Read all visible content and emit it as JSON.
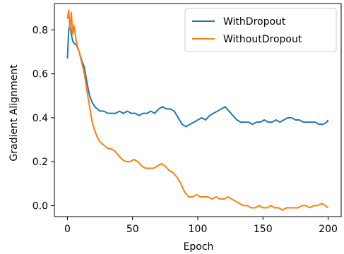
{
  "chart_data": {
    "type": "line",
    "title": "",
    "xlabel": "Epoch",
    "ylabel": "Gradient Alignment",
    "xlim": [
      -10,
      210
    ],
    "ylim": [
      -0.05,
      0.92
    ],
    "xticks": [
      0,
      50,
      100,
      150,
      200
    ],
    "yticks": [
      0.0,
      0.2,
      0.4,
      0.6,
      0.8
    ],
    "ytick_labels": [
      "0.0",
      "0.2",
      "0.4",
      "0.6",
      "0.8"
    ],
    "grid": false,
    "legend_position": "top-right",
    "series": [
      {
        "name": "WithDropout",
        "color": "#1f77b4",
        "x": [
          0,
          1,
          2,
          3,
          4,
          5,
          7,
          9,
          11,
          13,
          15,
          17,
          19,
          21,
          23,
          25,
          28,
          31,
          34,
          37,
          40,
          43,
          46,
          49,
          52,
          55,
          58,
          61,
          64,
          67,
          70,
          73,
          76,
          79,
          82,
          85,
          88,
          91,
          94,
          97,
          100,
          103,
          106,
          109,
          112,
          115,
          118,
          121,
          124,
          127,
          130,
          133,
          136,
          139,
          142,
          145,
          148,
          151,
          154,
          157,
          160,
          163,
          166,
          169,
          172,
          175,
          178,
          181,
          184,
          187,
          190,
          193,
          196,
          199,
          200
        ],
        "y": [
          0.67,
          0.8,
          0.83,
          0.78,
          0.75,
          0.74,
          0.73,
          0.7,
          0.66,
          0.63,
          0.56,
          0.5,
          0.47,
          0.45,
          0.44,
          0.43,
          0.43,
          0.42,
          0.42,
          0.42,
          0.43,
          0.42,
          0.43,
          0.42,
          0.42,
          0.41,
          0.42,
          0.42,
          0.43,
          0.42,
          0.44,
          0.45,
          0.44,
          0.44,
          0.43,
          0.4,
          0.37,
          0.36,
          0.37,
          0.38,
          0.39,
          0.4,
          0.39,
          0.41,
          0.42,
          0.43,
          0.44,
          0.45,
          0.43,
          0.41,
          0.39,
          0.38,
          0.38,
          0.38,
          0.37,
          0.38,
          0.38,
          0.39,
          0.38,
          0.38,
          0.39,
          0.38,
          0.39,
          0.4,
          0.4,
          0.39,
          0.39,
          0.38,
          0.38,
          0.38,
          0.38,
          0.37,
          0.37,
          0.38,
          0.39
        ]
      },
      {
        "name": "WithoutDropout",
        "color": "#ff7f0e",
        "x": [
          0,
          1,
          2,
          3,
          4,
          5,
          7,
          9,
          11,
          13,
          15,
          17,
          19,
          21,
          23,
          25,
          27,
          29,
          31,
          33,
          36,
          39,
          42,
          45,
          48,
          51,
          54,
          57,
          60,
          63,
          66,
          69,
          72,
          75,
          78,
          81,
          84,
          87,
          90,
          93,
          96,
          99,
          102,
          105,
          108,
          111,
          114,
          117,
          120,
          123,
          126,
          129,
          132,
          135,
          138,
          141,
          144,
          147,
          150,
          153,
          156,
          159,
          162,
          165,
          168,
          171,
          174,
          177,
          180,
          183,
          186,
          189,
          192,
          195,
          198,
          200
        ],
        "y": [
          0.85,
          0.89,
          0.8,
          0.88,
          0.78,
          0.82,
          0.74,
          0.7,
          0.65,
          0.6,
          0.52,
          0.45,
          0.38,
          0.34,
          0.31,
          0.29,
          0.28,
          0.27,
          0.26,
          0.26,
          0.25,
          0.23,
          0.21,
          0.2,
          0.2,
          0.21,
          0.2,
          0.18,
          0.17,
          0.17,
          0.17,
          0.18,
          0.19,
          0.18,
          0.16,
          0.15,
          0.13,
          0.1,
          0.06,
          0.04,
          0.04,
          0.05,
          0.04,
          0.04,
          0.04,
          0.03,
          0.04,
          0.03,
          0.03,
          0.04,
          0.03,
          0.02,
          0.01,
          0.0,
          0.0,
          -0.01,
          -0.01,
          0.0,
          -0.01,
          -0.01,
          0.0,
          -0.01,
          -0.01,
          -0.02,
          -0.01,
          -0.01,
          -0.01,
          -0.01,
          0.0,
          0.0,
          -0.01,
          0.0,
          0.0,
          0.01,
          0.0,
          -0.01
        ]
      }
    ]
  }
}
